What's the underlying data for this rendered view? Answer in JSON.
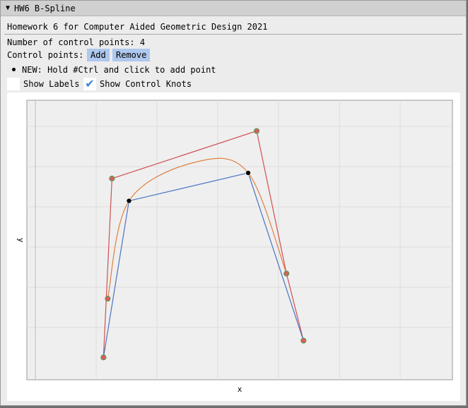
{
  "window": {
    "title": "HW6 B-Spline",
    "collapse_icon": "triangle-down-icon"
  },
  "header": {
    "homework_title": "Homework 6 for Computer Aided Geometric Design 2021"
  },
  "controls": {
    "count_text": "Number of control points: 4",
    "control_points_label": "Control points:",
    "add_label": "Add",
    "remove_label": "Remove",
    "hint_text": "NEW: Hold #Ctrl and click to add point",
    "show_labels": {
      "label": "Show Labels",
      "checked": false
    },
    "show_knots": {
      "label": "Show Control Knots",
      "checked": true
    }
  },
  "colors": {
    "accent_button": "#aec8ee",
    "polygon_outer": "#d05050",
    "polygon_inner": "#4a72c4",
    "curve": "#e08040",
    "knot_fill": "#e05a5a",
    "knot_ring": "#5a9a5a",
    "point_fill": "#000000"
  },
  "chart_data": {
    "type": "scatter",
    "xlabel": "x",
    "ylabel": "y",
    "grid": true,
    "axis_ranges": {
      "x": [
        0,
        1
      ],
      "y": [
        0,
        1
      ]
    },
    "series": [
      {
        "kind": "control-knots-polygon",
        "points": [
          [
            0.18,
            0.08
          ],
          [
            0.2,
            0.72
          ],
          [
            0.54,
            0.89
          ],
          [
            0.61,
            0.38
          ],
          [
            0.65,
            0.14
          ]
        ]
      },
      {
        "kind": "control-points-polygon",
        "points": [
          [
            0.18,
            0.08
          ],
          [
            0.24,
            0.64
          ],
          [
            0.52,
            0.74
          ],
          [
            0.65,
            0.14
          ]
        ]
      },
      {
        "kind": "curve",
        "points": [
          [
            0.19,
            0.29
          ],
          [
            0.24,
            0.64
          ],
          [
            0.4,
            0.78
          ],
          [
            0.52,
            0.74
          ],
          [
            0.61,
            0.38
          ]
        ]
      }
    ],
    "knots": [
      [
        0.18,
        0.08
      ],
      [
        0.19,
        0.29
      ],
      [
        0.2,
        0.72
      ],
      [
        0.54,
        0.89
      ],
      [
        0.61,
        0.38
      ],
      [
        0.65,
        0.14
      ]
    ],
    "control_points": [
      [
        0.24,
        0.64
      ],
      [
        0.52,
        0.74
      ]
    ]
  }
}
